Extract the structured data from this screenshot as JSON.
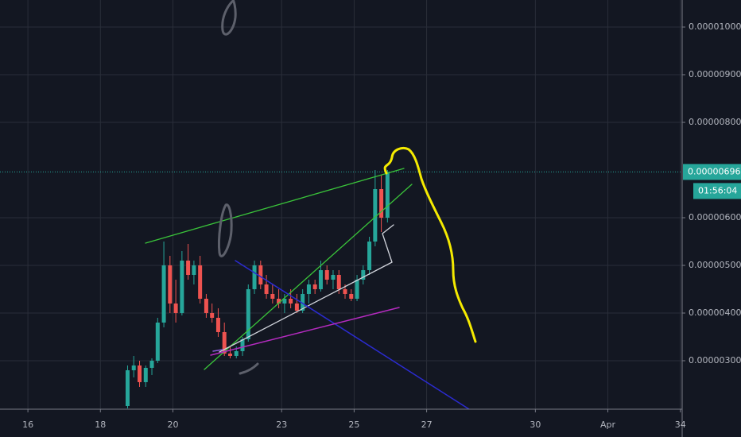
{
  "chart_data": {
    "type": "candlestick",
    "x": [
      18.75,
      18.92,
      19.08,
      19.25,
      19.42,
      19.58,
      19.75,
      19.92,
      20.08,
      20.25,
      20.42,
      20.58,
      20.75,
      20.92,
      21.08,
      21.25,
      21.42,
      21.58,
      21.75,
      21.92,
      22.08,
      22.25,
      22.42,
      22.58,
      22.75,
      22.92,
      23.08,
      23.25,
      23.42,
      23.58,
      23.75,
      23.92,
      24.08,
      24.25,
      24.42,
      24.58,
      24.75,
      24.92,
      25.08,
      25.25,
      25.42,
      25.58,
      25.75,
      25.92
    ],
    "open": [
      2.05e-06,
      2.8e-06,
      2.9e-06,
      2.55e-06,
      2.85e-06,
      3e-06,
      3.8e-06,
      5e-06,
      4.2e-06,
      4e-06,
      5.1e-06,
      4.8e-06,
      5e-06,
      4.3e-06,
      4e-06,
      3.9e-06,
      3.6e-06,
      3.15e-06,
      3.1e-06,
      3.2e-06,
      3.45e-06,
      4.5e-06,
      5e-06,
      4.6e-06,
      4.4e-06,
      4.3e-06,
      4.2e-06,
      4.3e-06,
      4.2e-06,
      4.05e-06,
      4.4e-06,
      4.6e-06,
      4.5e-06,
      4.9e-06,
      4.7e-06,
      4.8e-06,
      4.5e-06,
      4.4e-06,
      4.3e-06,
      4.7e-06,
      4.9e-06,
      5.5e-06,
      6.6e-06,
      6e-06
    ],
    "high": [
      2.9e-06,
      3.1e-06,
      3e-06,
      2.9e-06,
      3.05e-06,
      3.9e-06,
      5.5e-06,
      5.2e-06,
      4.7e-06,
      5.3e-06,
      5.45e-06,
      5.1e-06,
      5.2e-06,
      4.4e-06,
      4.2e-06,
      4.1e-06,
      3.8e-06,
      3.3e-06,
      3.3e-06,
      3.5e-06,
      4.6e-06,
      5.1e-06,
      5.1e-06,
      4.8e-06,
      4.6e-06,
      4.5e-06,
      4.4e-06,
      4.5e-06,
      4.4e-06,
      4.5e-06,
      4.7e-06,
      4.7e-06,
      5.1e-06,
      5e-06,
      4.9e-06,
      4.9e-06,
      4.6e-06,
      4.5e-06,
      4.8e-06,
      5e-06,
      5.6e-06,
      7e-06,
      6.9e-06,
      7e-06
    ],
    "low": [
      2e-06,
      2.65e-06,
      2.45e-06,
      2.45e-06,
      2.7e-06,
      2.95e-06,
      3.7e-06,
      4e-06,
      3.8e-06,
      3.95e-06,
      4.7e-06,
      4.6e-06,
      4.2e-06,
      3.9e-06,
      3.8e-06,
      3.5e-06,
      3.1e-06,
      3.05e-06,
      3.05e-06,
      3.1e-06,
      3.4e-06,
      4.4e-06,
      4.5e-06,
      4.3e-06,
      4.2e-06,
      4.1e-06,
      4e-06,
      4.1e-06,
      4e-06,
      4e-06,
      4.2e-06,
      4.4e-06,
      4.45e-06,
      4.6e-06,
      4.5e-06,
      4.4e-06,
      4.3e-06,
      4.25e-06,
      4.25e-06,
      4.6e-06,
      4.8e-06,
      5.4e-06,
      5.7e-06,
      5.9e-06
    ],
    "close": [
      2.8e-06,
      2.9e-06,
      2.55e-06,
      2.85e-06,
      3e-06,
      3.8e-06,
      5e-06,
      4.2e-06,
      4e-06,
      5.1e-06,
      4.8e-06,
      5e-06,
      4.3e-06,
      4e-06,
      3.9e-06,
      3.6e-06,
      3.15e-06,
      3.1e-06,
      3.2e-06,
      3.45e-06,
      4.5e-06,
      5e-06,
      4.6e-06,
      4.4e-06,
      4.3e-06,
      4.2e-06,
      4.3e-06,
      4.2e-06,
      4.05e-06,
      4.4e-06,
      4.6e-06,
      4.5e-06,
      4.9e-06,
      4.7e-06,
      4.8e-06,
      4.5e-06,
      4.4e-06,
      4.3e-06,
      4.7e-06,
      4.9e-06,
      5.5e-06,
      6.6e-06,
      6e-06,
      6.96e-06
    ],
    "up_color": "#26a69a",
    "down_color": "#ef5350",
    "xlim": [
      15.23,
      34.05
    ],
    "xticks": [
      16,
      18,
      20,
      23,
      25,
      27,
      30,
      {
        "value": 32,
        "label": "Apr"
      },
      34
    ],
    "ylim": [
      1.983e-06,
      1.0567e-05
    ],
    "yticks": [
      {
        "value": 3e-06,
        "label": "0.00000300"
      },
      {
        "value": 4e-06,
        "label": "0.00000400"
      },
      {
        "value": 5e-06,
        "label": "0.00000500"
      },
      {
        "value": 6e-06,
        "label": "0.00000600"
      },
      {
        "value": 8e-06,
        "label": "0.00000800"
      },
      {
        "value": 9e-06,
        "label": "0.00000900"
      },
      {
        "value": 1e-05,
        "label": "0.00001000"
      }
    ],
    "grid": true,
    "last_price": {
      "value": 6.96e-06,
      "label": "0.00000696"
    },
    "countdown": "01:56:04"
  }
}
